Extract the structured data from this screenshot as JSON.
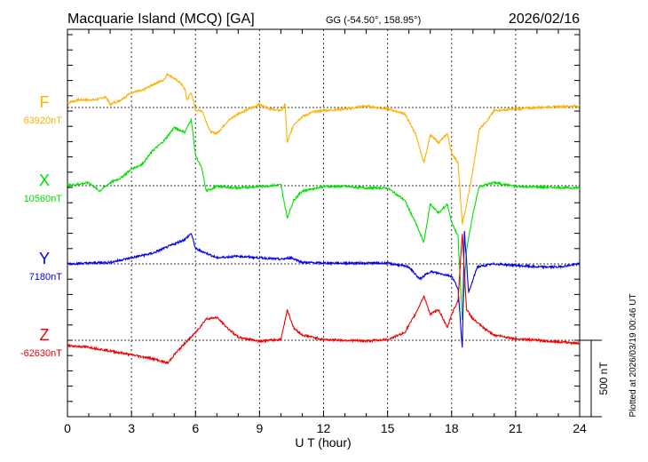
{
  "header": {
    "station": "Macquarie Island (MCQ)  [GA]",
    "coords": "GG (-54.50°, 158.95°)",
    "date": "2026/02/16"
  },
  "footer": {
    "plotted": "Plotted at 2026/03/19 00:46 UT"
  },
  "chart_data": {
    "type": "line",
    "title": "Macquarie Island (MCQ)  [GA] 2026/02/16",
    "xlabel": "U T (hour)",
    "xlim": [
      0,
      24
    ],
    "xticks": [
      "0",
      "3",
      "6",
      "9",
      "12",
      "15",
      "18",
      "21",
      "24"
    ],
    "scale_bar": "500 nT",
    "scale_bar_nT": 500,
    "grid": true,
    "series": [
      {
        "name": "F",
        "baseline_label": "63920nT",
        "color": "#FFB000",
        "x": [
          0,
          0.5,
          1.3,
          1.8,
          2,
          2.5,
          3,
          3.5,
          4,
          4.5,
          4.7,
          5,
          5.3,
          5.5,
          5.6,
          5.8,
          6,
          6.3,
          6.7,
          7,
          7.5,
          8,
          8.5,
          9,
          9.5,
          10,
          10.2,
          10.3,
          10.6,
          11,
          11.5,
          12,
          13,
          14,
          15,
          15.8,
          16.3,
          16.7,
          17,
          17.4,
          17.8,
          18,
          18.3,
          18.5,
          18.7,
          19,
          19.3,
          19.7,
          20,
          21,
          22,
          24
        ],
        "values": [
          30,
          50,
          50,
          70,
          20,
          50,
          100,
          110,
          150,
          180,
          220,
          190,
          160,
          120,
          50,
          100,
          -20,
          -20,
          -160,
          -170,
          -90,
          -40,
          -10,
          20,
          -10,
          -20,
          20,
          -230,
          -110,
          -60,
          -30,
          -20,
          -10,
          10,
          -10,
          -40,
          -170,
          -360,
          -180,
          -230,
          -170,
          -300,
          -360,
          -760,
          -640,
          -410,
          -140,
          -80,
          -20,
          -10,
          0,
          10
        ]
      },
      {
        "name": "X",
        "baseline_label": "10560nT",
        "color": "#00E000",
        "x": [
          0,
          1,
          1.5,
          2,
          2.5,
          3,
          3.5,
          4,
          4.5,
          5,
          5.5,
          5.8,
          6,
          6.3,
          6.5,
          7,
          8,
          9,
          10,
          10.3,
          10.6,
          11,
          12,
          13,
          14,
          15,
          15.8,
          16.3,
          16.7,
          17,
          17.4,
          17.8,
          18,
          18.3,
          18.5,
          18.7,
          19,
          19.3,
          20,
          21,
          24
        ],
        "values": [
          0,
          20,
          -35,
          20,
          50,
          110,
          140,
          230,
          290,
          380,
          350,
          435,
          200,
          110,
          -35,
          -5,
          -15,
          -5,
          5,
          -210,
          -95,
          -35,
          -5,
          -5,
          -15,
          -15,
          -95,
          -240,
          -370,
          -120,
          -180,
          -120,
          -240,
          -330,
          -880,
          -420,
          -180,
          -5,
          20,
          -5,
          -15
        ]
      },
      {
        "name": "Y",
        "baseline_label": "7180nT",
        "color": "#0000F0",
        "x": [
          0,
          2,
          3,
          4,
          5,
          5.5,
          5.8,
          6,
          7,
          8,
          9,
          10,
          10.5,
          11,
          12,
          14,
          15,
          16,
          16.5,
          17,
          18,
          18.3,
          18.5,
          18.6,
          18.8,
          19.2,
          20,
          21,
          22,
          23,
          24
        ],
        "values": [
          0,
          10,
          40,
          70,
          130,
          160,
          200,
          100,
          40,
          50,
          40,
          30,
          40,
          10,
          5,
          5,
          5,
          -20,
          -100,
          -50,
          -80,
          -160,
          -550,
          220,
          -190,
          -20,
          0,
          -10,
          -20,
          -20,
          0
        ]
      },
      {
        "name": "Z",
        "baseline_label": "-62630nT",
        "color": "#F00000",
        "x": [
          0,
          1,
          2,
          3,
          4,
          4.7,
          5,
          5.5,
          6,
          6.5,
          7,
          7.5,
          8,
          9,
          10,
          10.3,
          10.6,
          11,
          12,
          13,
          14,
          15,
          15.8,
          16.3,
          16.7,
          17,
          17.4,
          17.8,
          18,
          18.3,
          18.5,
          18.7,
          19,
          19.5,
          20,
          21,
          24
        ],
        "values": [
          -35,
          -45,
          -70,
          -95,
          -120,
          -150,
          -95,
          -20,
          50,
          140,
          150,
          80,
          20,
          -5,
          5,
          200,
          80,
          35,
          5,
          0,
          -5,
          5,
          50,
          170,
          290,
          170,
          200,
          80,
          170,
          260,
          700,
          200,
          140,
          80,
          35,
          10,
          -20
        ]
      }
    ]
  }
}
